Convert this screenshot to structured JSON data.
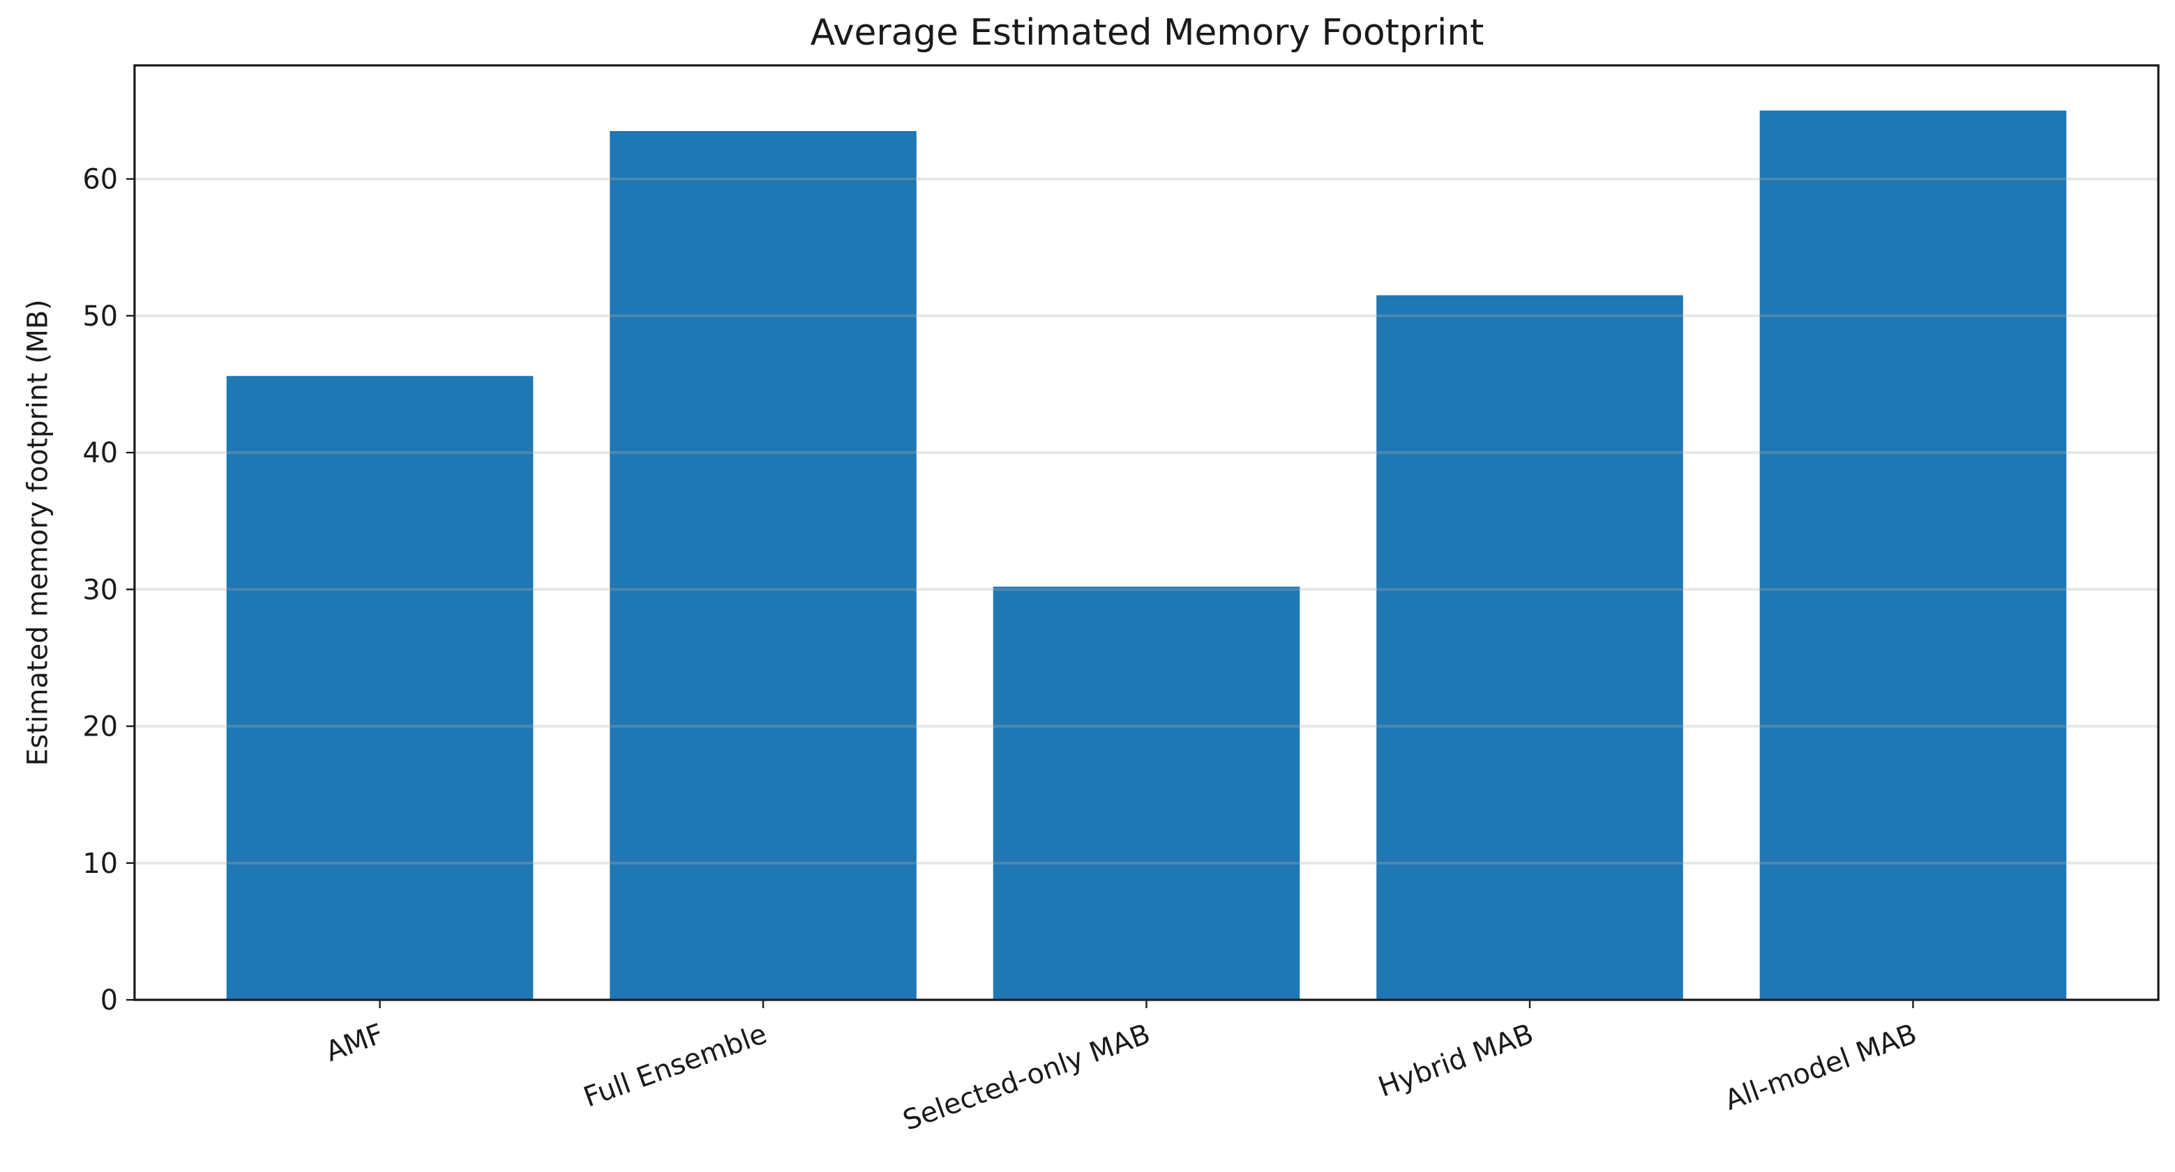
{
  "chart_data": {
    "type": "bar",
    "title": "Average Estimated Memory Footprint",
    "y_label": "Estimated memory footprint (MB)",
    "categories": [
      "AMF",
      "Full Ensemble",
      "Selected-only MAB",
      "Hybrid MAB",
      "All-model MAB"
    ],
    "values": [
      45.6,
      63.5,
      30.2,
      51.5,
      65.0
    ],
    "color": "#1f77b4",
    "ylim": [
      0,
      68.3
    ],
    "yticks": [
      0,
      10,
      20,
      30,
      40,
      50,
      60
    ],
    "grid": true
  }
}
